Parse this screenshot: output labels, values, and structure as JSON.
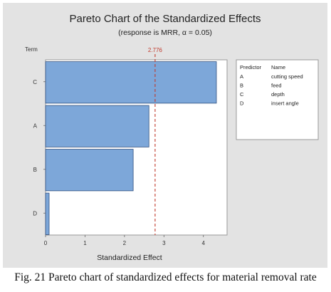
{
  "chart_data": {
    "type": "bar",
    "orientation": "horizontal",
    "title": "Pareto Chart of the Standardized Effects",
    "subtitle": "(response is MRR, α = 0.05)",
    "xlabel": "Standardized Effect",
    "ylabel": "Term",
    "categories": [
      "C",
      "A",
      "B",
      "D"
    ],
    "values": [
      4.33,
      2.62,
      2.22,
      0.09
    ],
    "xlim": [
      0,
      4.6
    ],
    "xticks": [
      "0",
      "1",
      "2",
      "3",
      "4"
    ],
    "reference_line": {
      "value": 2.776,
      "label": "2.776",
      "color": "#c0392b"
    },
    "grid": false,
    "legend": {
      "placement": "right",
      "headers": [
        "Predictor",
        "Name"
      ],
      "rows": [
        {
          "key": "A",
          "name": "cutting speed"
        },
        {
          "key": "B",
          "name": "feed"
        },
        {
          "key": "C",
          "name": "depth"
        },
        {
          "key": "D",
          "name": "insert angle"
        }
      ]
    },
    "bar_color": "#7da7d9",
    "bar_edge_color": "#2f4f7f"
  },
  "caption": "Fig. 21 Pareto chart of standardized effects for material removal rate"
}
